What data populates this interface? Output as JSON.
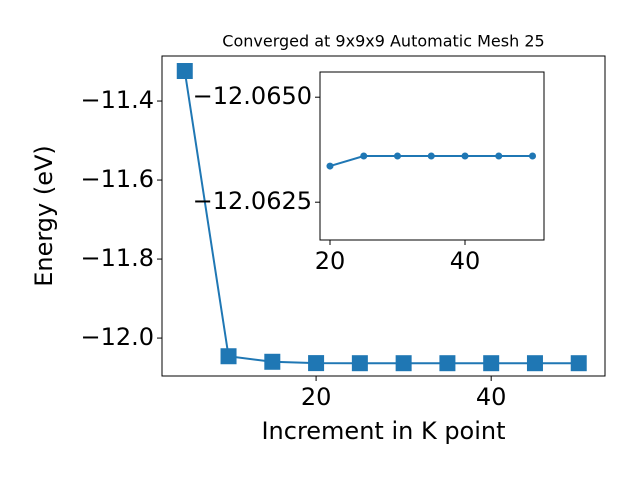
{
  "chart_data": [
    {
      "type": "line",
      "title": "Converged at 9x9x9 Automatic Mesh 25",
      "x_label": "Increment in K point",
      "y_label": "Energy (eV)",
      "x": [
        5,
        10,
        15,
        20,
        25,
        30,
        35,
        40,
        45,
        50
      ],
      "series": [
        {
          "name": "Energy",
          "color": "#1f77b4",
          "marker": "square",
          "values": [
            -11.324,
            -12.046,
            -12.06,
            -12.06336,
            -12.0636,
            -12.0636,
            -12.0636,
            -12.0636,
            -12.0636,
            -12.0636
          ]
        }
      ],
      "xlim": [
        2.4,
        53.0
      ],
      "ylim": [
        -12.096,
        -11.286
      ],
      "xticks": [
        20,
        40
      ],
      "yticks": [
        {
          "value": -12.0,
          "label": "−12.0"
        },
        {
          "value": -11.8,
          "label": "−11.8"
        },
        {
          "value": -11.6,
          "label": "−11.6"
        },
        {
          "value": -11.4,
          "label": "−11.4"
        }
      ]
    },
    {
      "type": "line",
      "x": [
        20,
        25,
        30,
        35,
        40,
        45,
        50
      ],
      "series": [
        {
          "name": "Energy",
          "color": "#1f77b4",
          "marker": "circle",
          "values": [
            -12.06336,
            -12.0636,
            -12.0636,
            -12.0636,
            -12.0636,
            -12.0636,
            -12.0636
          ]
        }
      ],
      "xlim": [
        18.52,
        51.7
      ],
      "ylim": [
        -12.0616,
        -12.0656
      ],
      "xticks": [
        20,
        40
      ],
      "yticks": [
        {
          "value": -12.0625,
          "label": "−12.0625"
        },
        {
          "value": -12.065,
          "label": "−12.0650"
        }
      ]
    }
  ]
}
